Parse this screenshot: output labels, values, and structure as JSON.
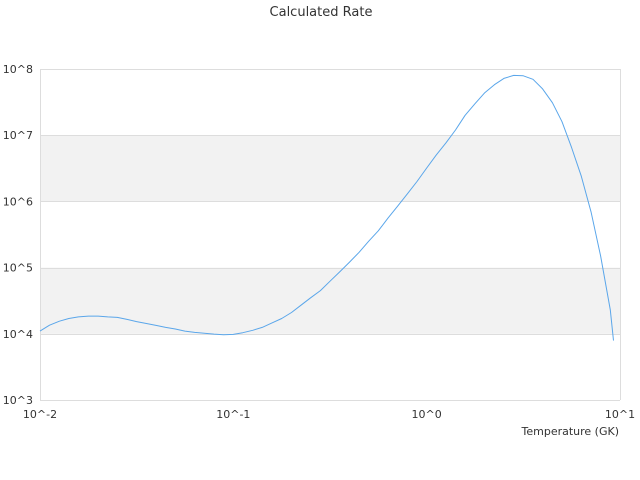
{
  "chart_data": {
    "type": "line",
    "title": "Calculated Rate",
    "xlabel": "Temperature (GK)",
    "ylabel": "",
    "x_scale": "log",
    "y_scale": "log",
    "xlim": [
      0.01,
      10
    ],
    "ylim": [
      1000,
      100000000
    ],
    "x_tick_labels": [
      "10^-2",
      "10^-1",
      "10^0",
      "10^1"
    ],
    "y_tick_labels": [
      "10^3",
      "10^4",
      "10^5",
      "10^6",
      "10^7",
      "10^8"
    ],
    "grid": "horizontal bands",
    "legend": "none",
    "colors": {
      "line": "#5aa6ea",
      "band": "#f2f2f2",
      "grid": "#dddddd"
    },
    "series": [
      {
        "x": [
          0.01,
          0.0112,
          0.0126,
          0.0141,
          0.0158,
          0.0178,
          0.02,
          0.0224,
          0.0251,
          0.0282,
          0.0316,
          0.0355,
          0.0398,
          0.0447,
          0.0501,
          0.0562,
          0.0631,
          0.0708,
          0.0794,
          0.0891,
          0.1,
          0.112,
          0.126,
          0.141,
          0.158,
          0.178,
          0.2,
          0.224,
          0.251,
          0.282,
          0.316,
          0.355,
          0.398,
          0.447,
          0.501,
          0.562,
          0.631,
          0.708,
          0.794,
          0.891,
          1.0,
          1.12,
          1.26,
          1.41,
          1.58,
          1.78,
          2.0,
          2.24,
          2.51,
          2.82,
          3.16,
          3.55,
          3.98,
          4.47,
          5.01,
          5.62,
          6.31,
          7.08,
          7.94,
          8.91,
          9.26
        ],
        "y": [
          11000,
          13500,
          15500,
          17000,
          18000,
          18500,
          18500,
          18000,
          17700,
          16500,
          15300,
          14300,
          13400,
          12500,
          11800,
          11000,
          10500,
          10200,
          9900,
          9700,
          9800,
          10400,
          11300,
          12500,
          14500,
          17000,
          21000,
          27000,
          35000,
          45000,
          62000,
          86000,
          120000,
          170000,
          250000,
          360000,
          560000,
          850000,
          1300000,
          2000000,
          3200000,
          5000000,
          7700000,
          12000000,
          20000000,
          30000000,
          44000000,
          58000000,
          72000000,
          80000000,
          79000000,
          70000000,
          50000000,
          31000000,
          16000000,
          6500000,
          2400000,
          700000,
          150000,
          23000,
          7900
        ]
      }
    ]
  }
}
